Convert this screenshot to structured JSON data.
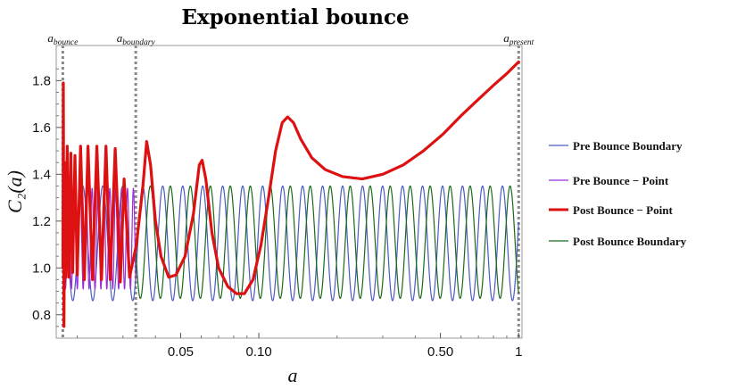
{
  "chart_data": {
    "type": "line",
    "title": "Exponential bounce",
    "xlabel": "a",
    "ylabel": "C₂(a)",
    "x_scale": "log",
    "xlim": [
      0.0166,
      1.03
    ],
    "ylim": [
      0.7,
      1.95
    ],
    "x_ticks": [
      {
        "value": 0.05,
        "label": "0.05"
      },
      {
        "value": 0.1,
        "label": "0.10"
      },
      {
        "value": 0.5,
        "label": "0.50"
      },
      {
        "value": 1,
        "label": "1"
      }
    ],
    "y_ticks": [
      {
        "value": 0.8,
        "label": "0.8"
      },
      {
        "value": 1.0,
        "label": "1.0"
      },
      {
        "value": 1.2,
        "label": "1.2"
      },
      {
        "value": 1.4,
        "label": "1.4"
      },
      {
        "value": 1.6,
        "label": "1.6"
      },
      {
        "value": 1.8,
        "label": "1.8"
      }
    ],
    "grid": false,
    "legend_position": "right",
    "vertical_lines": [
      {
        "a": 0.0176,
        "label_main": "a",
        "label_sub": "bounce"
      },
      {
        "a": 0.0336,
        "label_main": "a",
        "label_sub": "boundary"
      },
      {
        "a": 1.0,
        "label_main": "a",
        "label_sub": "present"
      }
    ],
    "series": [
      {
        "name": "Pre Bounce Boundary",
        "color": "#4b5bc4",
        "linewidth": 1.2,
        "oscillation": {
          "a_start": 0.0176,
          "a_end": 1.0,
          "min": 0.86,
          "max": 1.35,
          "periods_per_decade": 13.0,
          "phase": 0.0
        }
      },
      {
        "name": "Pre Bounce − Point",
        "color": "#9b2ed6",
        "linewidth": 1.2,
        "oscillation": {
          "a_start": 0.0176,
          "a_end": 0.0336,
          "min": 0.91,
          "max": 1.34,
          "periods_per_decade": 44.0,
          "phase": 0.3
        }
      },
      {
        "name": "Post Bounce − Point",
        "color": "#dd1111",
        "linewidth": 3.2,
        "points": [
          [
            0.01762,
            1.0
          ],
          [
            0.01768,
            1.79
          ],
          [
            0.01778,
            0.75
          ],
          [
            0.0179,
            1.45
          ],
          [
            0.0181,
            0.96
          ],
          [
            0.0183,
            1.52
          ],
          [
            0.0186,
            0.96
          ],
          [
            0.0189,
            1.49
          ],
          [
            0.0192,
            0.98
          ],
          [
            0.0196,
            1.48
          ],
          [
            0.02,
            0.97
          ],
          [
            0.0206,
            1.52
          ],
          [
            0.0213,
            0.95
          ],
          [
            0.022,
            1.52
          ],
          [
            0.0229,
            0.95
          ],
          [
            0.0238,
            1.52
          ],
          [
            0.0248,
            0.95
          ],
          [
            0.0258,
            1.52
          ],
          [
            0.0268,
            0.95
          ],
          [
            0.028,
            1.51
          ],
          [
            0.0293,
            0.94
          ],
          [
            0.0303,
            1.38
          ],
          [
            0.0318,
            0.96
          ],
          [
            0.0338,
            1.1
          ],
          [
            0.0358,
            1.35
          ],
          [
            0.037,
            1.54
          ],
          [
            0.0383,
            1.44
          ],
          [
            0.04,
            1.2
          ],
          [
            0.042,
            1.05
          ],
          [
            0.045,
            0.96
          ],
          [
            0.048,
            0.97
          ],
          [
            0.052,
            1.05
          ],
          [
            0.056,
            1.23
          ],
          [
            0.059,
            1.44
          ],
          [
            0.0605,
            1.46
          ],
          [
            0.0625,
            1.38
          ],
          [
            0.066,
            1.15
          ],
          [
            0.07,
            1.0
          ],
          [
            0.076,
            0.92
          ],
          [
            0.082,
            0.89
          ],
          [
            0.088,
            0.89
          ],
          [
            0.095,
            0.95
          ],
          [
            0.102,
            1.1
          ],
          [
            0.109,
            1.3
          ],
          [
            0.116,
            1.5
          ],
          [
            0.123,
            1.62
          ],
          [
            0.129,
            1.645
          ],
          [
            0.136,
            1.62
          ],
          [
            0.145,
            1.55
          ],
          [
            0.16,
            1.47
          ],
          [
            0.18,
            1.42
          ],
          [
            0.21,
            1.39
          ],
          [
            0.25,
            1.38
          ],
          [
            0.3,
            1.4
          ],
          [
            0.36,
            1.44
          ],
          [
            0.43,
            1.5
          ],
          [
            0.51,
            1.57
          ],
          [
            0.6,
            1.65
          ],
          [
            0.7,
            1.72
          ],
          [
            0.8,
            1.78
          ],
          [
            0.9,
            1.83
          ],
          [
            1.0,
            1.88
          ]
        ]
      },
      {
        "name": "Post Bounce Boundary",
        "color": "#1b6a1b",
        "linewidth": 1.2,
        "oscillation": {
          "a_start": 0.0336,
          "a_end": 1.0,
          "min": 0.87,
          "max": 1.35,
          "periods_per_decade": 13.0,
          "phase": 1.7
        }
      }
    ]
  }
}
